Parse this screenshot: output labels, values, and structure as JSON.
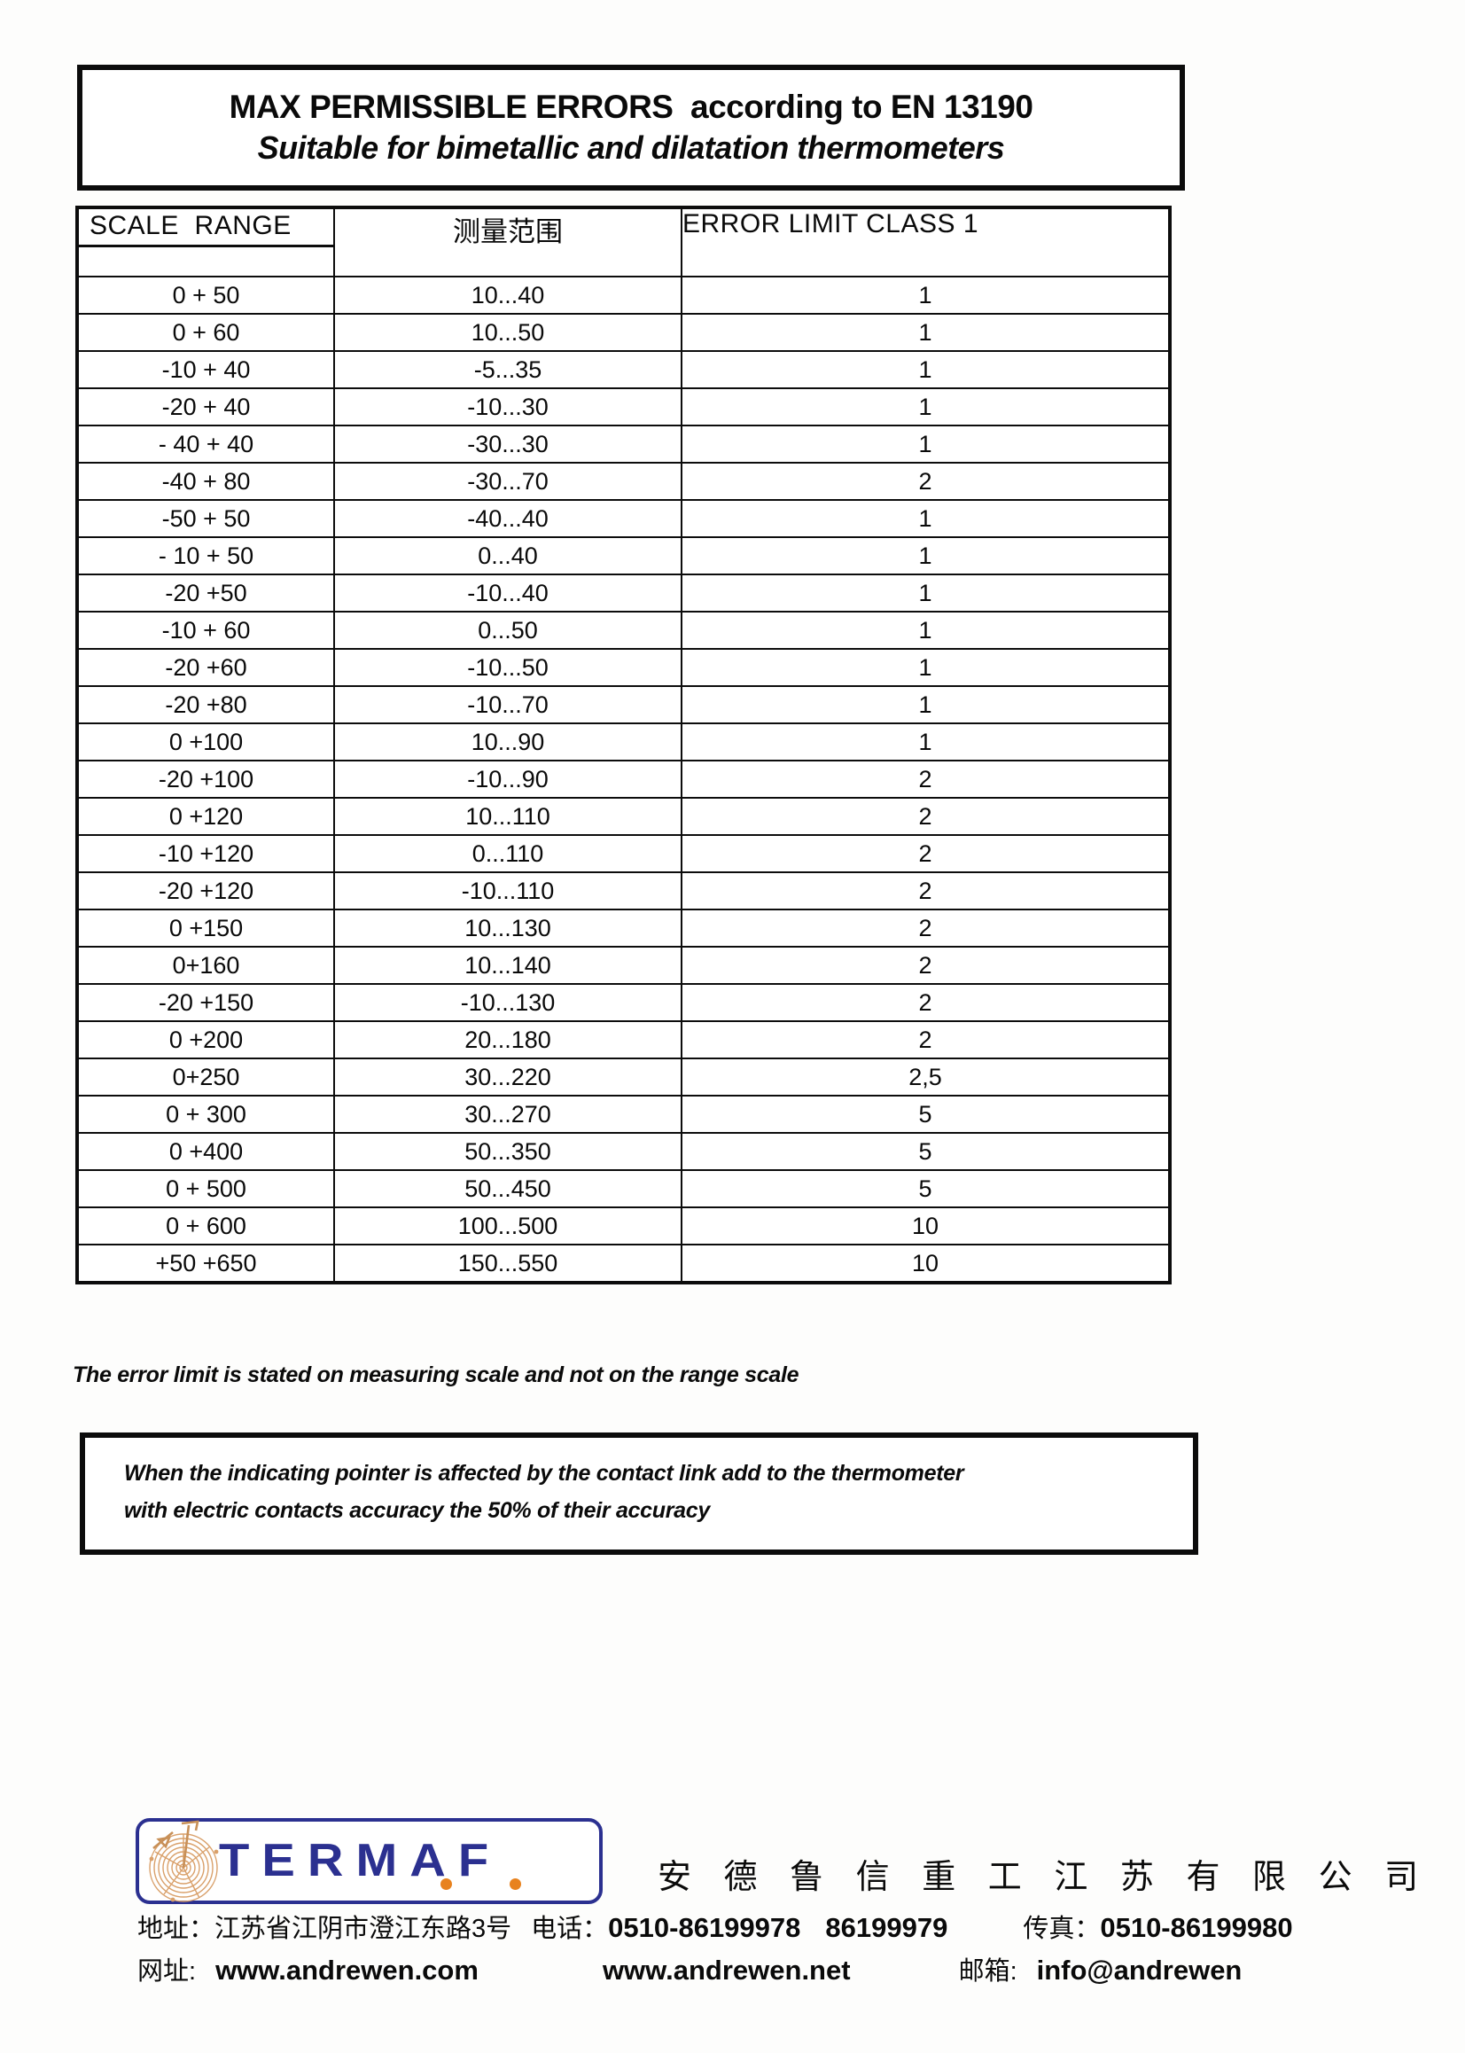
{
  "title": {
    "line1": "MAX PERMISSIBLE ERRORS  according to EN 13190",
    "line2": "Suitable for bimetallic and dilatation thermometers"
  },
  "table": {
    "headers": {
      "col1": "SCALE  RANGE",
      "col2": "测量范围",
      "col3": "ERROR LIMIT CLASS 1"
    },
    "rows": [
      [
        "0 + 50",
        "10...40",
        "1"
      ],
      [
        "0 + 60",
        "10...50",
        "1"
      ],
      [
        "-10 + 40",
        "-5...35",
        "1"
      ],
      [
        "-20 + 40",
        "-10...30",
        "1"
      ],
      [
        "- 40 + 40",
        "-30...30",
        "1"
      ],
      [
        "-40 + 80",
        "-30...70",
        "2"
      ],
      [
        "-50 + 50",
        "-40...40",
        "1"
      ],
      [
        "- 10 + 50",
        "0...40",
        "1"
      ],
      [
        "-20 +50",
        "-10...40",
        "1"
      ],
      [
        "-10 + 60",
        "0...50",
        "1"
      ],
      [
        "-20 +60",
        "-10...50",
        "1"
      ],
      [
        "-20 +80",
        "-10...70",
        "1"
      ],
      [
        "0 +100",
        "10...90",
        "1"
      ],
      [
        "-20 +100",
        "-10...90",
        "2"
      ],
      [
        "0 +120",
        "10...110",
        "2"
      ],
      [
        "-10 +120",
        "0...110",
        "2"
      ],
      [
        "-20 +120",
        "-10...110",
        "2"
      ],
      [
        "0 +150",
        "10...130",
        "2"
      ],
      [
        "0+160",
        "10...140",
        "2"
      ],
      [
        "-20 +150",
        "-10...130",
        "2"
      ],
      [
        "0 +200",
        "20...180",
        "2"
      ],
      [
        "0+250",
        "30...220",
        "2,5"
      ],
      [
        "0 + 300",
        "30...270",
        "5"
      ],
      [
        "0 +400",
        "50...350",
        "5"
      ],
      [
        "0 + 500",
        "50...450",
        "5"
      ],
      [
        "0 + 600",
        "100...500",
        "10"
      ],
      [
        "+50 +650",
        "150...550",
        "10"
      ]
    ]
  },
  "notes": {
    "note1": "The error limit is stated on measuring scale and not on the range scale",
    "note2_line1": "When the indicating pointer is affected by the contact link add to the thermometer",
    "note2_line2": "with electric contacts accuracy the 50% of their accuracy"
  },
  "footer": {
    "logo_text": "TERMAF",
    "company_name": "安 德 鲁 信 重 工 江 苏 有 限 公 司",
    "address_label": "地址：",
    "address": "江苏省江阴市澄江东路3号",
    "phone_label": "电话：",
    "phone1": "0510-86199978",
    "phone2": "86199979",
    "fax_label": "传真：",
    "fax": "0510-86199980",
    "web_label": "网址:",
    "web1": "www.andrewen.com",
    "web2": "www.andrewen.net",
    "email_label": "邮箱:",
    "email": "info@andrewen"
  },
  "colors": {
    "logo_navy": "#2b3090",
    "logo_orange": "#e8821e",
    "logo_tan": "#d9a06a",
    "border_black": "#0c0c0c"
  }
}
